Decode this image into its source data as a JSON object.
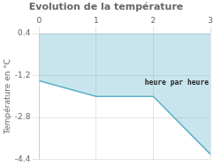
{
  "chart_data": {
    "type": "line",
    "title": "Evolution de la température",
    "y_label": "Température en °C",
    "x": [
      0,
      1,
      2,
      3
    ],
    "values": [
      -1.4,
      -2.0,
      -2.0,
      -4.2
    ],
    "color": "#5ab0c8",
    "xlim": [
      0,
      3
    ],
    "xticks": [
      0,
      1,
      2,
      3
    ],
    "ylim": [
      -4.4,
      0.4
    ],
    "yticks": [
      0.4,
      -1.2,
      -2.8,
      -4.4
    ],
    "grid": true,
    "annotations": [
      {
        "text": "heure par heure",
        "x": 1.85,
        "y": -1.55
      }
    ]
  }
}
